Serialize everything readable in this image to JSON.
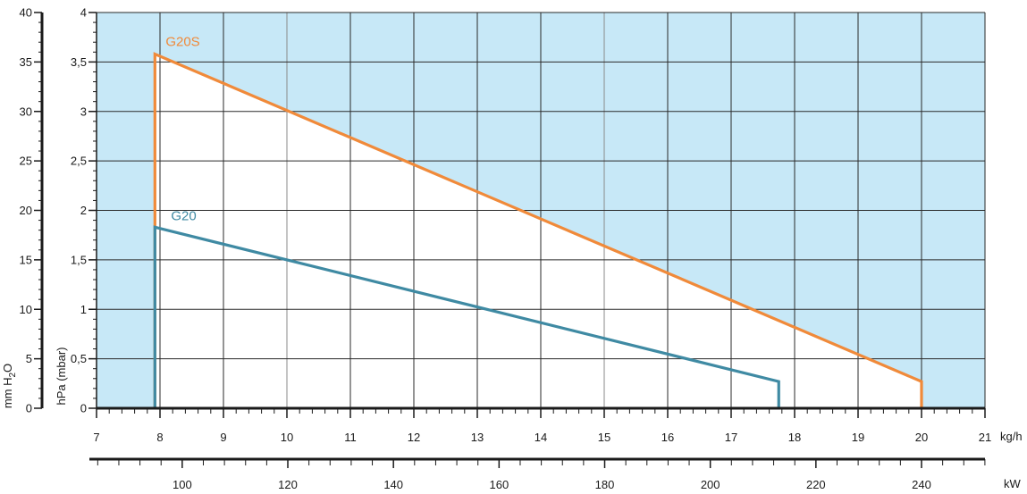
{
  "chart_data": {
    "type": "line",
    "x_unit": "kg/h",
    "x2_unit": "kW",
    "y_unit": "hPa (mbar)",
    "y2_unit": "mm H2O",
    "xlim": [
      7,
      21
    ],
    "ylim": [
      0,
      4
    ],
    "y2lim": [
      0,
      40
    ],
    "x_ticks": [
      7,
      8,
      9,
      10,
      11,
      12,
      13,
      14,
      15,
      16,
      17,
      18,
      19,
      20,
      21
    ],
    "y_ticks": [
      "0",
      "0,5",
      "1",
      "1,5",
      "2",
      "2,5",
      "3",
      "3,5",
      "4"
    ],
    "y_tick_values": [
      0,
      0.5,
      1,
      1.5,
      2,
      2.5,
      3,
      3.5,
      4
    ],
    "y2_ticks": [
      0,
      5,
      10,
      15,
      20,
      25,
      30,
      35,
      40
    ],
    "kw_labels": [
      100,
      120,
      140,
      160,
      180,
      200,
      220,
      240
    ],
    "kw_to_kgh": [
      [
        100,
        8.35
      ],
      [
        240,
        20.0
      ]
    ],
    "grid": true,
    "background_color": "#c7e8f7",
    "series": [
      {
        "name": "G20S",
        "color": "#f08a3a",
        "x": [
          7.92,
          7.92,
          20.0,
          20.0
        ],
        "y": [
          0,
          3.58,
          0.27,
          0
        ]
      },
      {
        "name": "G20",
        "color": "#3f8aa3",
        "x": [
          7.92,
          7.92,
          17.75,
          17.75
        ],
        "y": [
          0,
          1.83,
          0.27,
          0
        ]
      }
    ]
  }
}
